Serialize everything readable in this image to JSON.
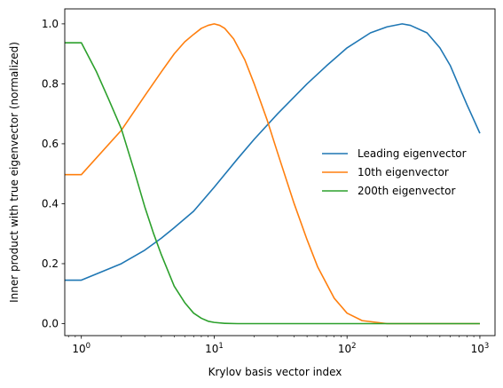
{
  "chart_data": {
    "type": "line",
    "xscale": "log",
    "xlim": [
      0.75,
      1300
    ],
    "ylim": [
      -0.04,
      1.05
    ],
    "xlabel": "Krylov basis vector index",
    "ylabel": "Inner product with true eigenvector (normalized)",
    "xticks": [
      {
        "value": 1,
        "base": "10",
        "exp": "0"
      },
      {
        "value": 10,
        "base": "10",
        "exp": "1"
      },
      {
        "value": 100,
        "base": "10",
        "exp": "2"
      },
      {
        "value": 1000,
        "base": "10",
        "exp": "3"
      }
    ],
    "yticks": [
      {
        "value": 0.0,
        "label": "0.0"
      },
      {
        "value": 0.2,
        "label": "0.2"
      },
      {
        "value": 0.4,
        "label": "0.4"
      },
      {
        "value": 0.6,
        "label": "0.6"
      },
      {
        "value": 0.8,
        "label": "0.8"
      },
      {
        "value": 1.0,
        "label": "1.0"
      }
    ],
    "grid": false,
    "legend_position": "right",
    "series": [
      {
        "name": "Leading eigenvector",
        "color": "#1f77b4",
        "points": [
          [
            0.75,
            0.145
          ],
          [
            1,
            0.145
          ],
          [
            2,
            0.2
          ],
          [
            3,
            0.245
          ],
          [
            4,
            0.285
          ],
          [
            5,
            0.32
          ],
          [
            7,
            0.375
          ],
          [
            10,
            0.455
          ],
          [
            15,
            0.55
          ],
          [
            20,
            0.615
          ],
          [
            30,
            0.7
          ],
          [
            50,
            0.8
          ],
          [
            70,
            0.86
          ],
          [
            100,
            0.92
          ],
          [
            150,
            0.97
          ],
          [
            200,
            0.99
          ],
          [
            260,
            1.0
          ],
          [
            300,
            0.995
          ],
          [
            400,
            0.97
          ],
          [
            500,
            0.92
          ],
          [
            600,
            0.86
          ],
          [
            700,
            0.79
          ],
          [
            800,
            0.73
          ],
          [
            900,
            0.68
          ],
          [
            1000,
            0.635
          ]
        ]
      },
      {
        "name": "10th eigenvector",
        "color": "#ff7f0e",
        "points": [
          [
            0.75,
            0.497
          ],
          [
            1,
            0.497
          ],
          [
            2,
            0.645
          ],
          [
            3,
            0.76
          ],
          [
            4,
            0.84
          ],
          [
            5,
            0.9
          ],
          [
            6,
            0.94
          ],
          [
            7,
            0.965
          ],
          [
            8,
            0.985
          ],
          [
            9,
            0.995
          ],
          [
            10,
            1.0
          ],
          [
            11,
            0.995
          ],
          [
            12,
            0.985
          ],
          [
            14,
            0.95
          ],
          [
            17,
            0.88
          ],
          [
            20,
            0.8
          ],
          [
            25,
            0.68
          ],
          [
            30,
            0.57
          ],
          [
            40,
            0.4
          ],
          [
            50,
            0.28
          ],
          [
            60,
            0.19
          ],
          [
            80,
            0.085
          ],
          [
            100,
            0.035
          ],
          [
            130,
            0.01
          ],
          [
            200,
            0.0
          ],
          [
            1000,
            0.0
          ]
        ]
      },
      {
        "name": "200th eigenvector",
        "color": "#2ca02c",
        "points": [
          [
            0.75,
            0.937
          ],
          [
            1,
            0.937
          ],
          [
            1.3,
            0.84
          ],
          [
            1.6,
            0.75
          ],
          [
            2,
            0.65
          ],
          [
            2.5,
            0.51
          ],
          [
            3,
            0.39
          ],
          [
            3.5,
            0.3
          ],
          [
            4,
            0.23
          ],
          [
            5,
            0.125
          ],
          [
            6,
            0.07
          ],
          [
            7,
            0.035
          ],
          [
            8,
            0.018
          ],
          [
            9,
            0.008
          ],
          [
            10,
            0.004
          ],
          [
            12,
            0.001
          ],
          [
            15,
            0.0
          ],
          [
            1000,
            0.0
          ]
        ]
      }
    ]
  }
}
